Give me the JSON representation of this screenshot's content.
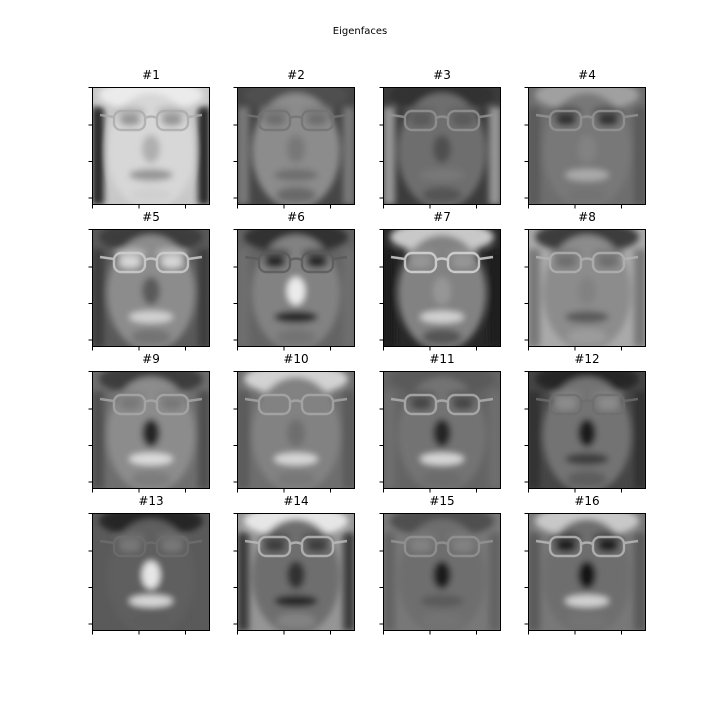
{
  "figure": {
    "suptitle": "Eigenfaces",
    "colormap": "gray",
    "grid": {
      "rows": 4,
      "cols": 4
    },
    "panels": [
      {
        "title": "#1",
        "variant": 0
      },
      {
        "title": "#2",
        "variant": 1
      },
      {
        "title": "#3",
        "variant": 2
      },
      {
        "title": "#4",
        "variant": 3
      },
      {
        "title": "#5",
        "variant": 4
      },
      {
        "title": "#6",
        "variant": 5
      },
      {
        "title": "#7",
        "variant": 6
      },
      {
        "title": "#8",
        "variant": 7
      },
      {
        "title": "#9",
        "variant": 8
      },
      {
        "title": "#10",
        "variant": 9
      },
      {
        "title": "#11",
        "variant": 10
      },
      {
        "title": "#12",
        "variant": 11
      },
      {
        "title": "#13",
        "variant": 12
      },
      {
        "title": "#14",
        "variant": 13
      },
      {
        "title": "#15",
        "variant": 14
      },
      {
        "title": "#16",
        "variant": 15
      }
    ]
  }
}
